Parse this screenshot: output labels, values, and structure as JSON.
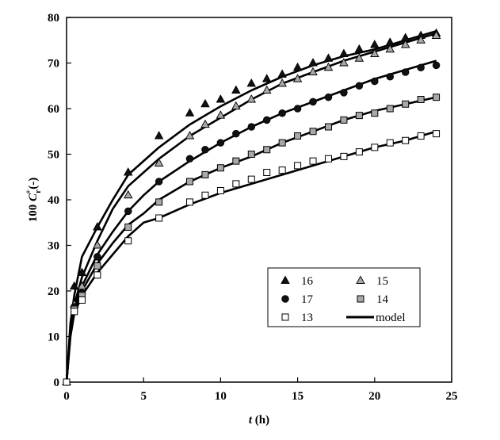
{
  "chart_data": {
    "type": "scatter",
    "xlabel": {
      "italic": "t",
      "unit": " (h)"
    },
    "ylabel": {
      "prefix": "100 ",
      "var": "C",
      "sub": "r",
      "sup": "+",
      "unit": "(-)"
    },
    "xlim": [
      0,
      25
    ],
    "ylim": [
      0,
      80
    ],
    "xticks": [
      0,
      5,
      10,
      15,
      20,
      25
    ],
    "yticks": [
      0,
      10,
      20,
      30,
      40,
      50,
      60,
      70,
      80
    ],
    "grid": false,
    "legend_position": "bottom-right",
    "series": [
      {
        "name": "16",
        "marker": "triangle",
        "fill": "#111111",
        "x": [
          0,
          0.5,
          1,
          2,
          4,
          6,
          8,
          9,
          10,
          11,
          12,
          13,
          14,
          15,
          16,
          17,
          18,
          19,
          20,
          21,
          22,
          23,
          24
        ],
        "y": [
          0,
          21,
          24,
          34,
          46,
          54,
          59,
          61,
          62,
          64,
          65.5,
          66.5,
          67.5,
          69,
          70,
          71,
          72,
          73,
          74,
          74.5,
          75.5,
          76,
          76.5
        ]
      },
      {
        "name": "15",
        "marker": "triangle",
        "fill": "#a8a8a8",
        "x": [
          0,
          0.5,
          1,
          2,
          4,
          6,
          8,
          9,
          10,
          11,
          12,
          13,
          14,
          15,
          16,
          17,
          18,
          19,
          20,
          21,
          22,
          23,
          24
        ],
        "y": [
          0,
          17,
          21,
          30,
          41,
          48,
          54,
          56.5,
          58.5,
          60.5,
          62,
          64,
          65.5,
          66.5,
          68,
          69,
          70,
          71,
          72,
          73,
          74,
          75,
          76
        ]
      },
      {
        "name": "17",
        "marker": "circle",
        "fill": "#111111",
        "x": [
          0,
          0.5,
          1,
          2,
          4,
          6,
          8,
          9,
          10,
          11,
          12,
          13,
          14,
          15,
          16,
          17,
          18,
          19,
          20,
          21,
          22,
          23,
          24
        ],
        "y": [
          0,
          16.5,
          19.5,
          27.5,
          37.5,
          44,
          49,
          51,
          52.5,
          54.5,
          56,
          57.5,
          59,
          60,
          61.5,
          62.5,
          63.5,
          65,
          66,
          67,
          68,
          69,
          69.5
        ]
      },
      {
        "name": "14",
        "marker": "square",
        "fill": "#a8a8a8",
        "x": [
          0,
          0.5,
          1,
          2,
          4,
          6,
          8,
          9,
          10,
          11,
          12,
          13,
          14,
          15,
          16,
          17,
          18,
          19,
          20,
          21,
          22,
          23,
          24
        ],
        "y": [
          0,
          16,
          19,
          25.5,
          34,
          39.5,
          44,
          45.5,
          47,
          48.5,
          50,
          51,
          52.5,
          54,
          55,
          56,
          57.5,
          58.5,
          59,
          60,
          61,
          62,
          62.5
        ]
      },
      {
        "name": "13",
        "marker": "square",
        "fill": "#ffffff",
        "x": [
          0,
          0.5,
          1,
          2,
          4,
          6,
          8,
          9,
          10,
          11,
          12,
          13,
          14,
          15,
          16,
          17,
          18,
          19,
          20,
          21,
          22,
          23,
          24
        ],
        "y": [
          0,
          15.5,
          18,
          23.5,
          31,
          36,
          39.5,
          41,
          42,
          43.5,
          44.5,
          46,
          46.5,
          47.5,
          48.5,
          49,
          49.5,
          50.5,
          51.5,
          52.5,
          53,
          54,
          54.5
        ]
      }
    ],
    "model": {
      "name": "model",
      "lines": [
        {
          "x": [
            0,
            0.25,
            0.5,
            1,
            2,
            3,
            4,
            5,
            6,
            8,
            10,
            12,
            14,
            16,
            18,
            20,
            22,
            24
          ],
          "y": [
            0,
            13,
            19,
            27.5,
            34,
            40,
            45.5,
            48.5,
            51.5,
            56.5,
            60.5,
            64,
            67,
            69.5,
            71.5,
            73,
            75,
            77
          ]
        },
        {
          "x": [
            0,
            0.25,
            0.5,
            1,
            2,
            3,
            4,
            5,
            6,
            8,
            10,
            12,
            14,
            16,
            18,
            20,
            22,
            24
          ],
          "y": [
            0,
            12,
            17,
            23,
            31,
            38,
            43,
            46,
            49,
            54,
            58,
            62,
            65.5,
            68,
            70.5,
            72.5,
            74.5,
            76.5
          ]
        },
        {
          "x": [
            0,
            0.25,
            0.5,
            1,
            2,
            3,
            4,
            5,
            6,
            8,
            10,
            12,
            14,
            16,
            18,
            20,
            22,
            24
          ],
          "y": [
            0,
            11,
            16,
            21,
            28,
            33,
            37.5,
            41,
            44,
            48.5,
            52.5,
            56,
            59,
            61.5,
            64,
            66.5,
            68.5,
            70.5
          ]
        },
        {
          "x": [
            0,
            0.25,
            0.5,
            1,
            2,
            3,
            4,
            5,
            6,
            8,
            10,
            12,
            14,
            16,
            18,
            20,
            22,
            24
          ],
          "y": [
            0,
            10.5,
            15.5,
            20,
            26,
            30.5,
            34.5,
            37,
            40,
            44,
            47,
            49.5,
            52.5,
            55,
            57.5,
            59.5,
            61,
            62.5
          ]
        },
        {
          "x": [
            0,
            0.25,
            0.5,
            1,
            2,
            3,
            4,
            5,
            6,
            8,
            10,
            12,
            14,
            16,
            18,
            20,
            22,
            24
          ],
          "y": [
            0,
            10,
            15,
            19,
            24,
            28,
            32,
            35,
            36,
            39,
            41.5,
            43.5,
            45.5,
            47.5,
            49.5,
            51.5,
            53,
            55
          ]
        }
      ]
    }
  }
}
